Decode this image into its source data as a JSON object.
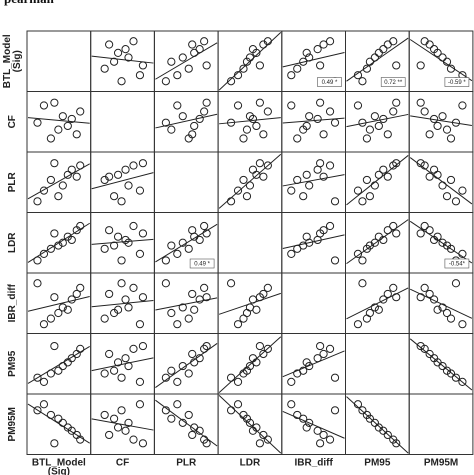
{
  "header_fragment": "pearman",
  "chart_data": {
    "type": "scatter",
    "layout": "scatterplot-matrix",
    "variables": [
      {
        "key": "BTL",
        "label": "BTL_Model\n(Sig)"
      },
      {
        "key": "CF",
        "label": "CF"
      },
      {
        "key": "PLR",
        "label": "PLR"
      },
      {
        "key": "LDR",
        "label": "LDR"
      },
      {
        "key": "IBR",
        "label": "IBR_diff"
      },
      {
        "key": "PM95",
        "label": "PM95"
      },
      {
        "key": "PM95M",
        "label": "PM95M"
      }
    ],
    "observations": [
      {
        "BTL": 0.2,
        "CF": 0.85,
        "PLR": 0.32,
        "LDR": 0.26,
        "IBR": 0.05,
        "PM95": 0.11,
        "PM95M": 0.93
      },
      {
        "BTL": 0.34,
        "CF": 0.14,
        "PLR": 0.55,
        "LDR": 0.37,
        "IBR": 0.17,
        "PM95": 0.29,
        "PM95M": 0.7
      },
      {
        "BTL": 0.49,
        "CF": 0.33,
        "PLR": 0.2,
        "LDR": 0.44,
        "IBR": 0.29,
        "PM95": 0.35,
        "PM95M": 0.62
      },
      {
        "BTL": 0.58,
        "CF": 0.62,
        "PLR": 0.43,
        "LDR": 0.5,
        "IBR": 0.41,
        "PM95": 0.45,
        "PM95M": 0.53
      },
      {
        "BTL": 0.68,
        "CF": 0.41,
        "PLR": 0.66,
        "LDR": 0.63,
        "IBR": 0.36,
        "PM95": 0.53,
        "PM95M": 0.43
      },
      {
        "BTL": 0.76,
        "CF": 0.56,
        "PLR": 0.77,
        "LDR": 0.56,
        "IBR": 0.58,
        "PM95": 0.62,
        "PM95M": 0.36
      },
      {
        "BTL": 0.86,
        "CF": 0.23,
        "PLR": 0.62,
        "LDR": 0.77,
        "IBR": 0.7,
        "PM95": 0.71,
        "PM95M": 0.27
      },
      {
        "BTL": 0.93,
        "CF": 0.72,
        "PLR": 0.86,
        "LDR": 0.86,
        "IBR": 0.83,
        "PM95": 0.82,
        "PM95M": 0.17
      },
      {
        "BTL": 0.41,
        "CF": 0.91,
        "PLR": 0.91,
        "LDR": 0.7,
        "IBR": 0.63,
        "PM95": 0.88,
        "PM95M": 0.09
      },
      {
        "BTL": 0.07,
        "CF": 0.48,
        "PLR": 0.09,
        "LDR": 0.12,
        "IBR": 0.93,
        "PM95": 0.2,
        "PM95M": 0.8
      }
    ],
    "fit_lines": "least-squares line in every off-diagonal panel",
    "diagonal_panels": "empty",
    "annotations": [
      {
        "row": "BTL",
        "col": "IBR",
        "text": "0.49 *"
      },
      {
        "row": "BTL",
        "col": "PM95",
        "text": "0.72 **"
      },
      {
        "row": "BTL",
        "col": "PM95M",
        "text": "-0.59 *"
      },
      {
        "row": "LDR",
        "col": "PLR",
        "text": "0.49 *"
      },
      {
        "row": "LDR",
        "col": "PM95M",
        "text": "-0.54*"
      }
    ],
    "marker": "open circle",
    "grid": false,
    "legend": "none"
  }
}
